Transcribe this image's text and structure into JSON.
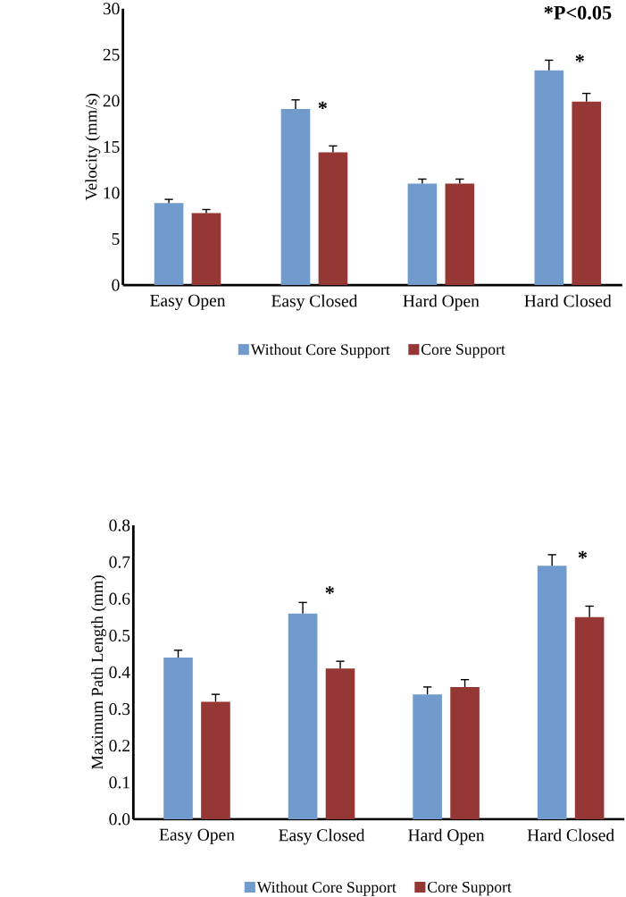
{
  "chart_data": [
    {
      "type": "bar",
      "ylabel": "Velocity (mm/s)",
      "categories": [
        "Easy Open",
        "Easy Closed",
        "Hard Open",
        "Hard Closed"
      ],
      "series": [
        {
          "name": "Without Core Support",
          "color": "#729bcd",
          "values": [
            8.9,
            19.1,
            11.0,
            23.3
          ],
          "errors": [
            0.4,
            1.0,
            0.5,
            1.1
          ]
        },
        {
          "name": "Core Support",
          "color": "#953735",
          "values": [
            7.8,
            14.4,
            11.0,
            19.9
          ],
          "errors": [
            0.4,
            0.7,
            0.5,
            0.9
          ]
        }
      ],
      "ylim": [
        0,
        30
      ],
      "yticks": [
        0,
        5,
        10,
        15,
        20,
        25,
        30
      ],
      "legend": "bottom",
      "annotations": [
        "*P<0.05",
        "*",
        "*"
      ]
    },
    {
      "type": "bar",
      "ylabel": "Maximum Path Length (mm)",
      "categories": [
        "Easy Open",
        "Easy Closed",
        "Hard Open",
        "Hard Closed"
      ],
      "series": [
        {
          "name": "Without Core Support",
          "color": "#729bcd",
          "values": [
            0.44,
            0.56,
            0.34,
            0.69
          ],
          "errors": [
            0.02,
            0.03,
            0.02,
            0.03
          ]
        },
        {
          "name": "Core Support",
          "color": "#953735",
          "values": [
            0.32,
            0.41,
            0.36,
            0.55
          ],
          "errors": [
            0.02,
            0.02,
            0.02,
            0.03
          ]
        }
      ],
      "ylim": [
        0,
        0.8
      ],
      "yticks": [
        {
          "value": 0,
          "label": "0.0"
        },
        0.1,
        0.2,
        0.3,
        0.4,
        0.5,
        0.6,
        0.7,
        0.8
      ],
      "legend": "bottom",
      "annotations": [
        "*",
        "*"
      ]
    }
  ]
}
